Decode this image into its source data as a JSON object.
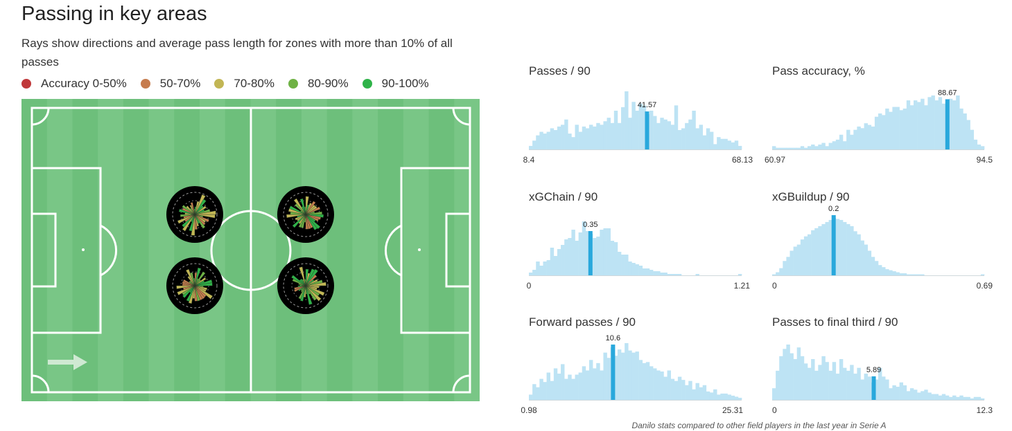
{
  "title": "Passing in key areas",
  "subtitle": "Rays show directions and average pass length for zones with more than 10% of all passes",
  "legend": [
    {
      "label": "Accuracy 0-50%",
      "color": "#c0393b"
    },
    {
      "label": "50-70%",
      "color": "#c67c4e"
    },
    {
      "label": "70-80%",
      "color": "#c2b655"
    },
    {
      "label": "80-90%",
      "color": "#6fb245"
    },
    {
      "label": "90-100%",
      "color": "#2fb349"
    }
  ],
  "footer": "Danilo stats compared to other field players in the last year in Serie A",
  "pitch": {
    "attack_direction": "right",
    "grass_colors": [
      "#6dbf7b",
      "#79c686"
    ],
    "zones": [
      {
        "name": "left-half upper",
        "ray_colors": [
          "#6fb245",
          "#2fb349",
          "#c2b655",
          "#c67c4e"
        ]
      },
      {
        "name": "left-half lower",
        "ray_colors": [
          "#6fb245",
          "#2fb349",
          "#c2b655",
          "#c67c4e"
        ]
      },
      {
        "name": "right-half upper",
        "ray_colors": [
          "#6fb245",
          "#2fb349",
          "#c2b655",
          "#c67c4e"
        ]
      },
      {
        "name": "right-half lower",
        "ray_colors": [
          "#6fb245",
          "#2fb349",
          "#c2b655",
          "#c67c4e"
        ]
      }
    ]
  },
  "chart_data": [
    {
      "type": "bar",
      "title": "Passes / 90",
      "xmin": 8.4,
      "xmax": 68.13,
      "xmin_label": "8.4",
      "xmax_label": "68.13",
      "player_value": 41.57,
      "player_label": "41.57",
      "values": [
        2,
        5,
        8,
        10,
        9,
        10,
        12,
        11,
        13,
        14,
        17,
        9,
        7,
        14,
        10,
        13,
        12,
        14,
        13,
        15,
        14,
        16,
        18,
        15,
        22,
        15,
        24,
        33,
        18,
        27,
        22,
        26,
        25,
        20,
        22,
        19,
        15,
        18,
        17,
        16,
        14,
        25,
        11,
        12,
        15,
        17,
        22,
        12,
        14,
        8,
        12,
        10,
        3,
        7,
        6,
        6,
        5,
        4,
        5,
        2
      ]
    },
    {
      "type": "bar",
      "title": "Pass accuracy, %",
      "xmin": 60.97,
      "xmax": 94.5,
      "xmin_label": "60.97",
      "xmax_label": "94.5",
      "player_value": 88.67,
      "player_label": "88.67",
      "values": [
        2,
        1,
        1,
        1,
        1,
        1,
        1,
        1,
        2,
        1,
        2,
        3,
        2,
        3,
        4,
        2,
        4,
        5,
        6,
        9,
        5,
        12,
        9,
        12,
        14,
        13,
        16,
        15,
        14,
        20,
        22,
        21,
        25,
        23,
        26,
        26,
        24,
        25,
        30,
        27,
        30,
        29,
        31,
        27,
        32,
        33,
        30,
        32,
        28,
        29,
        31,
        30,
        33,
        25,
        22,
        18,
        12,
        6,
        3,
        2
      ]
    },
    {
      "type": "bar",
      "title": "xGChain / 90",
      "xmin": 0,
      "xmax": 1.21,
      "xmin_label": "0",
      "xmax_label": "1.21",
      "player_value": 0.35,
      "player_label": "0.35",
      "values": [
        2,
        4,
        10,
        7,
        10,
        11,
        20,
        14,
        19,
        22,
        26,
        27,
        33,
        25,
        31,
        39,
        32,
        30,
        27,
        28,
        33,
        34,
        34,
        25,
        24,
        17,
        15,
        15,
        10,
        9,
        8,
        7,
        5,
        5,
        4,
        3,
        3,
        2,
        2,
        1,
        1,
        1,
        1,
        0,
        0,
        0,
        0,
        1,
        0,
        0,
        0,
        0,
        0,
        0,
        0,
        0,
        0,
        0,
        0,
        1
      ]
    },
    {
      "type": "bar",
      "title": "xGBuildup / 90",
      "xmin": 0,
      "xmax": 0.69,
      "xmin_label": "0",
      "xmax_label": "0.69",
      "player_value": 0.2,
      "player_label": "0.2",
      "values": [
        1,
        3,
        7,
        14,
        18,
        24,
        28,
        30,
        35,
        38,
        40,
        44,
        46,
        48,
        50,
        52,
        54,
        56,
        55,
        54,
        52,
        50,
        48,
        43,
        40,
        34,
        30,
        24,
        18,
        14,
        10,
        8,
        6,
        5,
        4,
        3,
        2,
        2,
        1,
        1,
        1,
        1,
        1,
        0,
        0,
        0,
        0,
        0,
        0,
        0,
        0,
        0,
        0,
        0,
        0,
        0,
        0,
        0,
        0,
        1
      ]
    },
    {
      "type": "bar",
      "title": "Forward passes / 90",
      "xmin": 0.98,
      "xmax": 25.31,
      "xmin_label": "0.98",
      "xmax_label": "25.31",
      "player_value": 10.6,
      "player_label": "10.6",
      "values": [
        5,
        15,
        12,
        20,
        17,
        26,
        18,
        30,
        25,
        34,
        20,
        24,
        20,
        24,
        26,
        32,
        28,
        38,
        30,
        35,
        28,
        45,
        40,
        50,
        42,
        48,
        45,
        54,
        47,
        45,
        46,
        38,
        35,
        36,
        32,
        30,
        28,
        27,
        22,
        28,
        20,
        18,
        22,
        19,
        14,
        18,
        10,
        16,
        12,
        14,
        8,
        7,
        10,
        5,
        6,
        6,
        5,
        4,
        3,
        2
      ]
    },
    {
      "type": "bar",
      "title": "Passes to final third / 90",
      "xmin": 0,
      "xmax": 12.3,
      "xmin_label": "0",
      "xmax_label": "12.3",
      "player_value": 5.89,
      "player_label": "5.89",
      "values": [
        8,
        20,
        30,
        35,
        38,
        32,
        28,
        36,
        30,
        25,
        22,
        28,
        20,
        24,
        30,
        26,
        20,
        26,
        18,
        28,
        22,
        20,
        24,
        18,
        22,
        14,
        18,
        16,
        12,
        14,
        22,
        16,
        14,
        8,
        10,
        9,
        12,
        10,
        6,
        8,
        7,
        5,
        6,
        7,
        5,
        4,
        4,
        3,
        4,
        3,
        2,
        3,
        2,
        3,
        2,
        2,
        1,
        2,
        2,
        1
      ]
    }
  ]
}
